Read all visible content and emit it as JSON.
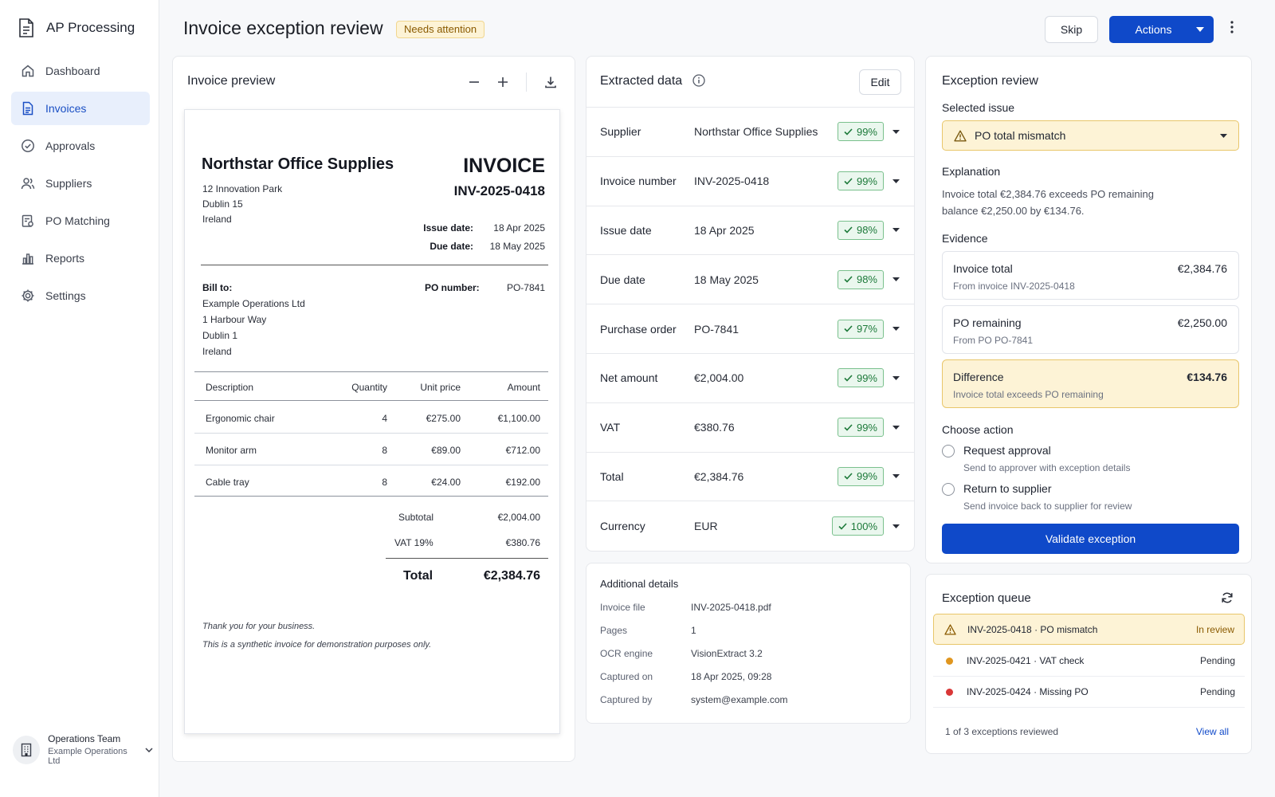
{
  "app": {
    "title": "AP Processing"
  },
  "sidebar": {
    "items": [
      {
        "label": "Dashboard",
        "icon": "home-icon"
      },
      {
        "label": "Invoices",
        "icon": "document-icon",
        "active": true
      },
      {
        "label": "Approvals",
        "icon": "check-circle-icon"
      },
      {
        "label": "Suppliers",
        "icon": "users-icon"
      },
      {
        "label": "PO Matching",
        "icon": "clipboard-icon"
      },
      {
        "label": "Reports",
        "icon": "bar-chart-icon"
      },
      {
        "label": "Settings",
        "icon": "gear-icon"
      }
    ],
    "team": {
      "name": "Operations Team",
      "org": "Example Operations Ltd"
    }
  },
  "header": {
    "title": "Invoice exception review",
    "status_badge": "Needs attention",
    "skip_label": "Skip",
    "actions_label": "Actions"
  },
  "preview": {
    "title": "Invoice preview",
    "invoice": {
      "supplier": "Northstar Office Supplies",
      "address": [
        "12 Innovation Park",
        "Dublin 15",
        "Ireland"
      ],
      "heading": "INVOICE",
      "number": "INV-2025-0418",
      "issue_date_label": "Issue date:",
      "issue_date": "18 Apr 2025",
      "due_date_label": "Due date:",
      "due_date": "18 May 2025",
      "bill_to_label": "Bill to:",
      "bill_to": [
        "Example Operations Ltd",
        "1 Harbour Way",
        "Dublin 1",
        "Ireland"
      ],
      "po_label": "PO number:",
      "po": "PO-7841",
      "columns": [
        "Description",
        "Quantity",
        "Unit price",
        "Amount"
      ],
      "lines": [
        [
          "Ergonomic chair",
          "4",
          "€275.00",
          "€1,100.00"
        ],
        [
          "Monitor arm",
          "8",
          "€89.00",
          "€712.00"
        ],
        [
          "Cable tray",
          "8",
          "€24.00",
          "€192.00"
        ]
      ],
      "subtotal_label": "Subtotal",
      "subtotal": "€2,004.00",
      "vat_label": "VAT 19%",
      "vat": "€380.76",
      "total_label": "Total",
      "total": "€2,384.76",
      "notes": [
        "Thank you for your business.",
        "This is a synthetic invoice for demonstration purposes only."
      ]
    }
  },
  "extracted": {
    "title": "Extracted data",
    "edit_label": "Edit",
    "rows": [
      {
        "label": "Supplier",
        "value": "Northstar Office Supplies",
        "confidence": "99%"
      },
      {
        "label": "Invoice number",
        "value": "INV-2025-0418",
        "confidence": "99%"
      },
      {
        "label": "Issue date",
        "value": "18 Apr 2025",
        "confidence": "98%"
      },
      {
        "label": "Due date",
        "value": "18 May 2025",
        "confidence": "98%"
      },
      {
        "label": "Purchase order",
        "value": "PO-7841",
        "confidence": "97%"
      },
      {
        "label": "Net amount",
        "value": "€2,004.00",
        "confidence": "99%"
      },
      {
        "label": "VAT",
        "value": "€380.76",
        "confidence": "99%"
      },
      {
        "label": "Total",
        "value": "€2,384.76",
        "confidence": "99%"
      },
      {
        "label": "Currency",
        "value": "EUR",
        "confidence": "100%"
      }
    ]
  },
  "additional": {
    "title": "Additional details",
    "rows": [
      {
        "label": "Invoice file",
        "value": "INV-2025-0418.pdf"
      },
      {
        "label": "Pages",
        "value": "1"
      },
      {
        "label": "OCR engine",
        "value": "VisionExtract 3.2"
      },
      {
        "label": "Captured on",
        "value": "18 Apr 2025, 09:28"
      },
      {
        "label": "Captured by",
        "value": "system@example.com"
      }
    ]
  },
  "exception": {
    "title": "Exception review",
    "selected_issue_label": "Selected issue",
    "selected_issue": "PO total mismatch",
    "explanation_label": "Explanation",
    "explanation": "Invoice total €2,384.76 exceeds PO remaining balance €2,250.00 by €134.76.",
    "evidence_label": "Evidence",
    "evidence": [
      {
        "title": "Invoice total",
        "sub": "From invoice INV-2025-0418",
        "amount": "€2,384.76"
      },
      {
        "title": "PO remaining",
        "sub": "From PO PO-7841",
        "amount": "€2,250.00"
      },
      {
        "title": "Difference",
        "sub": "Invoice total exceeds PO remaining",
        "amount": "€134.76"
      }
    ],
    "choose_action_label": "Choose action",
    "actions": [
      {
        "title": "Request approval",
        "sub": "Send to approver with exception details"
      },
      {
        "title": "Return to supplier",
        "sub": "Send invoice back to supplier for review"
      }
    ],
    "validate_label": "Validate exception"
  },
  "queue": {
    "title": "Exception queue",
    "items": [
      {
        "id": "INV-2025-0418",
        "issue": "PO mismatch",
        "status": "In review",
        "indicator": "warning-icon"
      },
      {
        "id": "INV-2025-0421",
        "issue": "VAT check",
        "status": "Pending",
        "dot_color": "#e0961f"
      },
      {
        "id": "INV-2025-0424",
        "issue": "Missing PO",
        "status": "Pending",
        "dot_color": "#d93737"
      }
    ],
    "summary": "1 of 3 exceptions reviewed",
    "view_all_label": "View all"
  },
  "colors": {
    "primary": "#0f49c9",
    "warning_bg": "#fdf3d6",
    "warning_border": "#e8c66a",
    "success": "#1d7a3a"
  }
}
